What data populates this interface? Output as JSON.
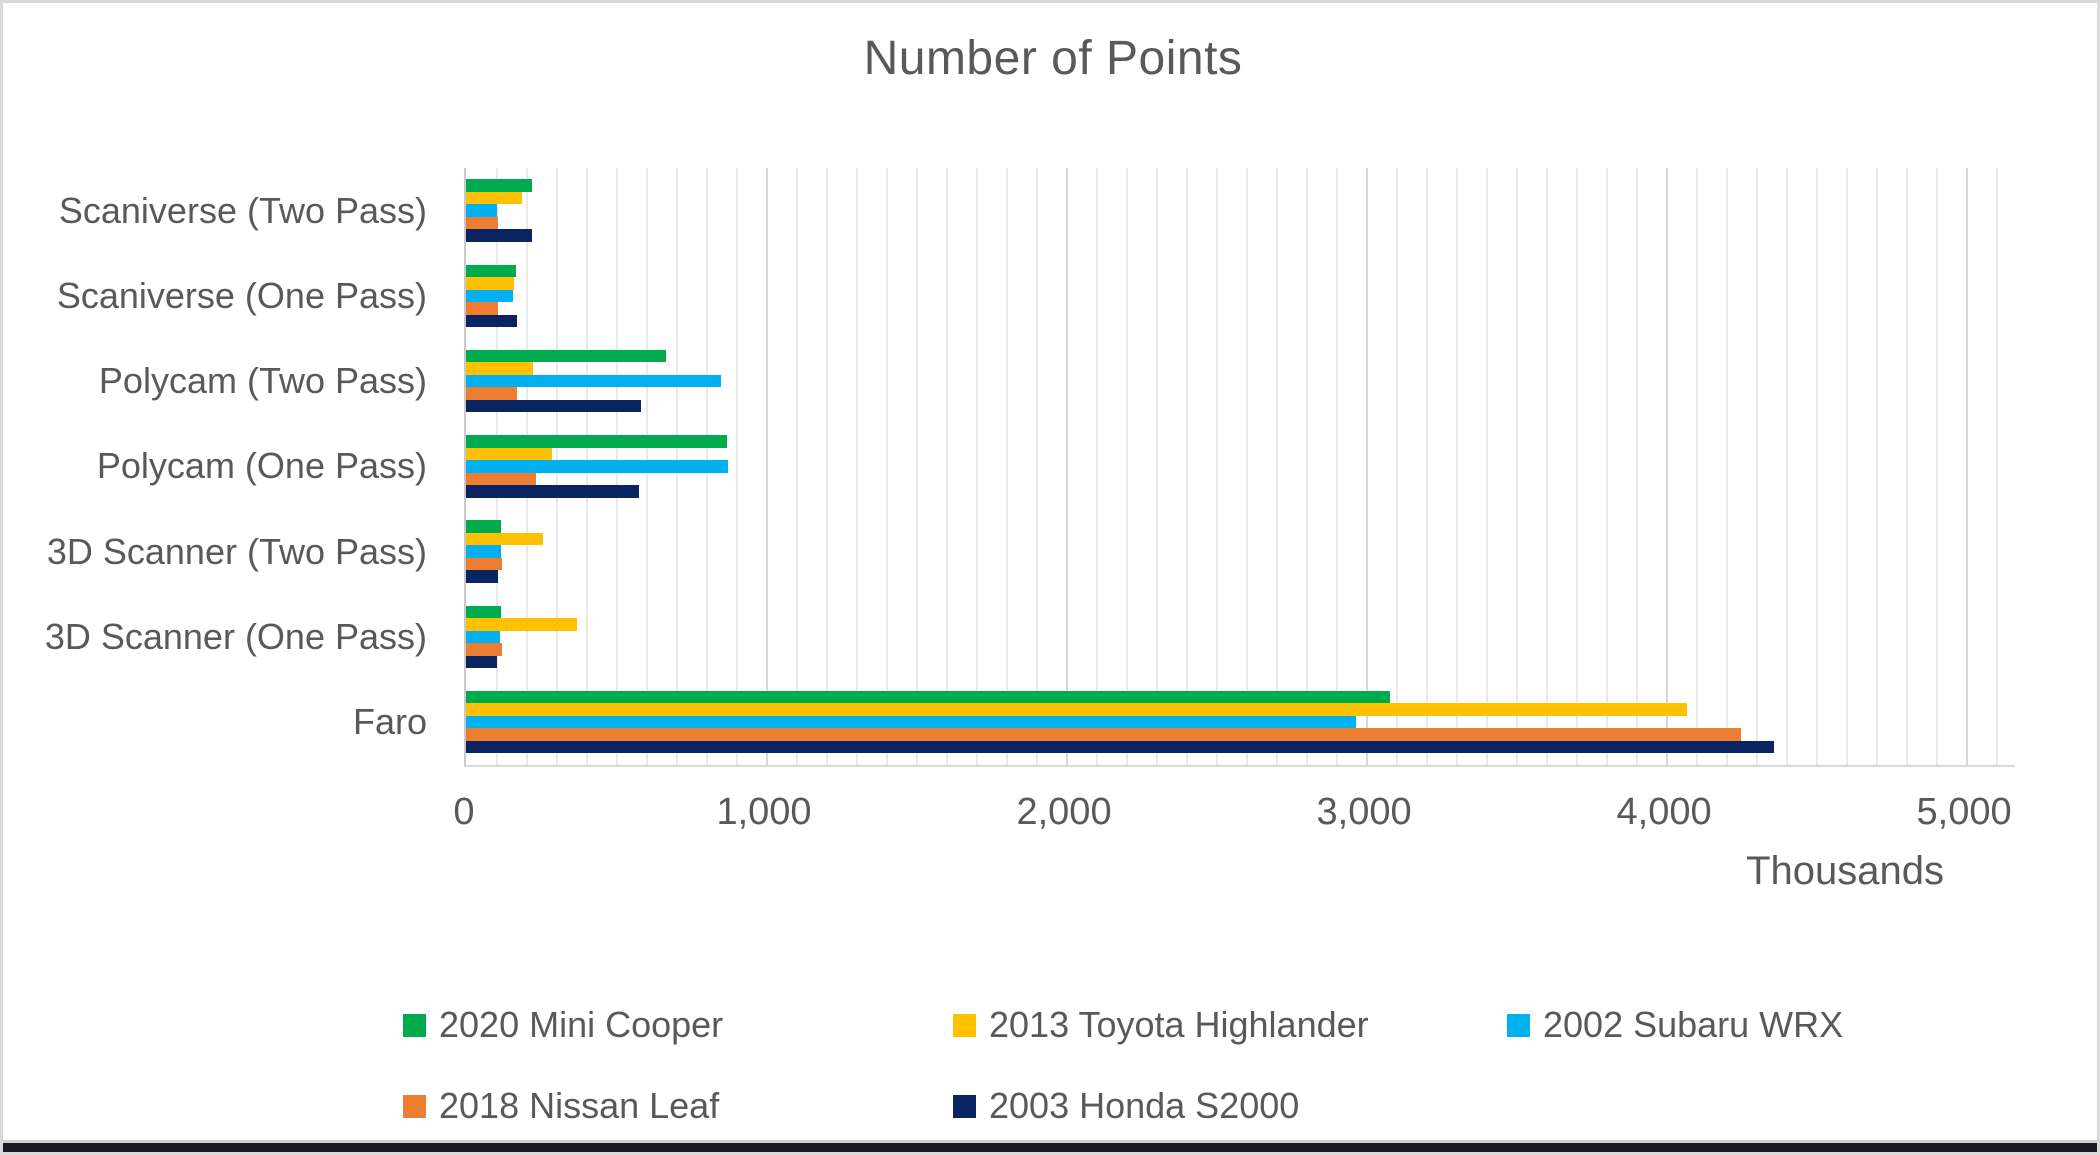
{
  "title": "Number of Points",
  "x_axis": {
    "tick_labels": [
      "0",
      "1,000",
      "2,000",
      "3,000",
      "4,000",
      "5,000"
    ],
    "tick_values": [
      0,
      1000,
      2000,
      3000,
      4000,
      5000
    ],
    "unit_label": "Thousands",
    "axis_max_units": 5163,
    "minor_gridline_step": 100,
    "major_gridline_step": 1000
  },
  "chart_data": {
    "type": "bar",
    "orientation": "horizontal",
    "title": "Number of Points",
    "xlabel": "Thousands",
    "xlim": [
      0,
      5163
    ],
    "grid": "minor vertical every 100, major every 1000",
    "legend_position": "bottom",
    "value_unit": "thousands of points",
    "categories": [
      "Scaniverse (Two Pass)",
      "Scaniverse (One Pass)",
      "Polycam (Two Pass)",
      "Polycam (One Pass)",
      "3D Scanner (Two Pass)",
      "3D Scanner (One Pass)",
      "Faro"
    ],
    "series": [
      {
        "name": "2020 Mini Cooper",
        "color": "#00AB4E",
        "values": [
          219,
          166,
          665,
          869,
          117,
          117,
          3080
        ]
      },
      {
        "name": "2013 Toyota Highlander",
        "color": "#FFC000",
        "values": [
          186,
          160,
          224,
          286,
          258,
          369,
          4070
        ]
      },
      {
        "name": "2002 Subaru WRX",
        "color": "#00B0F0",
        "values": [
          102,
          156,
          850,
          874,
          115,
          113,
          2965
        ]
      },
      {
        "name": "2018 Nissan Leaf",
        "color": "#ED7D31",
        "values": [
          108,
          108,
          169,
          233,
          121,
          119,
          4250
        ]
      },
      {
        "name": "2003 Honda S2000",
        "color": "#0A2462",
        "values": [
          221,
          169,
          583,
          577,
          105,
          102,
          4360
        ]
      }
    ]
  },
  "colors": {
    "text": "#595959",
    "gridline_minor": "#E9E9E9",
    "gridline_major": "#D6D6D6",
    "axis_line": "#C9C9C9",
    "chart_border": "#D9D9D9",
    "bottom_edge_bar": "#1A1A22"
  }
}
